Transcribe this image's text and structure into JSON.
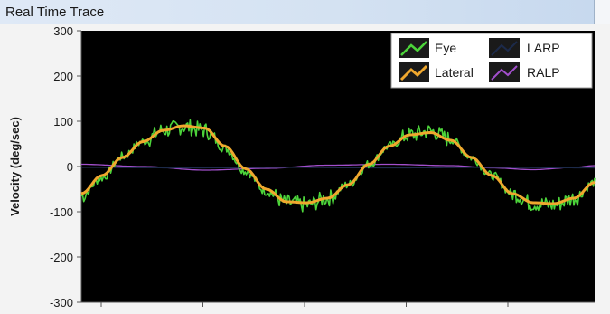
{
  "window": {
    "title": "Real Time Trace"
  },
  "chart_data": {
    "type": "line",
    "ylabel": "Velocity (deg/sec)",
    "xlabel": "",
    "ylim": [
      -300,
      300
    ],
    "y_ticks": [
      "300",
      "200",
      "100",
      "0",
      "-100",
      "-200",
      "-300"
    ],
    "y_tick_values": [
      300,
      200,
      100,
      0,
      -100,
      -200,
      -300
    ],
    "x_ticks_count": 5,
    "background": "#000000",
    "grid": false,
    "legend": {
      "placement": "top-right",
      "entries": [
        "Eye",
        "Lateral",
        "LARP",
        "RALP"
      ]
    },
    "series": [
      {
        "name": "Eye",
        "color": "#4cd43a",
        "points": [
          [
            0,
            -65
          ],
          [
            0.05,
            -25
          ],
          [
            0.1,
            22
          ],
          [
            0.15,
            55
          ],
          [
            0.2,
            80
          ],
          [
            0.25,
            88
          ],
          [
            0.3,
            80
          ],
          [
            0.35,
            40
          ],
          [
            0.4,
            -10
          ],
          [
            0.45,
            -55
          ],
          [
            0.5,
            -80
          ],
          [
            0.55,
            -85
          ],
          [
            0.6,
            -70
          ],
          [
            0.65,
            -40
          ],
          [
            0.7,
            5
          ],
          [
            0.75,
            45
          ],
          [
            0.8,
            70
          ],
          [
            0.85,
            78
          ],
          [
            0.9,
            60
          ],
          [
            0.95,
            20
          ],
          [
            1.0,
            -20
          ],
          [
            1.05,
            -60
          ],
          [
            1.1,
            -82
          ],
          [
            1.15,
            -85
          ],
          [
            1.2,
            -70
          ],
          [
            1.25,
            -35
          ]
        ]
      },
      {
        "name": "Lateral",
        "color": "#f0a82e",
        "points": [
          [
            0,
            -60
          ],
          [
            0.05,
            -20
          ],
          [
            0.1,
            20
          ],
          [
            0.15,
            55
          ],
          [
            0.2,
            80
          ],
          [
            0.25,
            90
          ],
          [
            0.3,
            85
          ],
          [
            0.35,
            45
          ],
          [
            0.4,
            -5
          ],
          [
            0.45,
            -50
          ],
          [
            0.5,
            -78
          ],
          [
            0.55,
            -80
          ],
          [
            0.6,
            -70
          ],
          [
            0.65,
            -40
          ],
          [
            0.7,
            5
          ],
          [
            0.75,
            45
          ],
          [
            0.8,
            70
          ],
          [
            0.85,
            75
          ],
          [
            0.9,
            58
          ],
          [
            0.95,
            20
          ],
          [
            1.0,
            -20
          ],
          [
            1.05,
            -60
          ],
          [
            1.1,
            -80
          ],
          [
            1.15,
            -82
          ],
          [
            1.2,
            -70
          ],
          [
            1.25,
            -35
          ]
        ]
      },
      {
        "name": "LARP",
        "color": "#1c2a4a",
        "points": [
          [
            0,
            -2
          ],
          [
            0.25,
            -3
          ],
          [
            0.5,
            -2
          ],
          [
            0.75,
            -3
          ],
          [
            1.0,
            -2
          ],
          [
            1.25,
            -3
          ]
        ]
      },
      {
        "name": "RALP",
        "color": "#a24fcc",
        "points": [
          [
            0,
            5
          ],
          [
            0.15,
            0
          ],
          [
            0.3,
            -8
          ],
          [
            0.45,
            -4
          ],
          [
            0.6,
            3
          ],
          [
            0.75,
            5
          ],
          [
            0.9,
            2
          ],
          [
            1.0,
            -3
          ],
          [
            1.1,
            -7
          ],
          [
            1.2,
            -2
          ],
          [
            1.25,
            2
          ]
        ]
      }
    ]
  }
}
